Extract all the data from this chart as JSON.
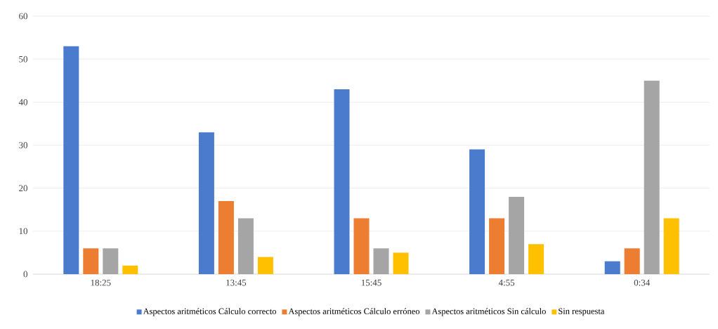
{
  "chart_data": {
    "type": "bar",
    "categories": [
      "18:25",
      "13:45",
      "15:45",
      "4:55",
      "0:34"
    ],
    "series": [
      {
        "name": "Aspectos aritméticos Cálculo correcto",
        "color": "#4a7bcc",
        "values": [
          53,
          33,
          43,
          29,
          3
        ]
      },
      {
        "name": "Aspectos aritméticos Cálculo erróneo",
        "color": "#ed7d31",
        "values": [
          6,
          17,
          13,
          13,
          6
        ]
      },
      {
        "name": "Aspectos aritméticos Sin cálculo",
        "color": "#a5a5a5",
        "values": [
          6,
          13,
          6,
          18,
          45
        ]
      },
      {
        "name": "Sin respuesta",
        "color": "#ffc000",
        "values": [
          2,
          4,
          5,
          7,
          13
        ]
      }
    ],
    "ylim": [
      0,
      60
    ],
    "yticks": [
      0,
      10,
      20,
      30,
      40,
      50,
      60
    ],
    "grid": "y",
    "legend": "bottom"
  }
}
